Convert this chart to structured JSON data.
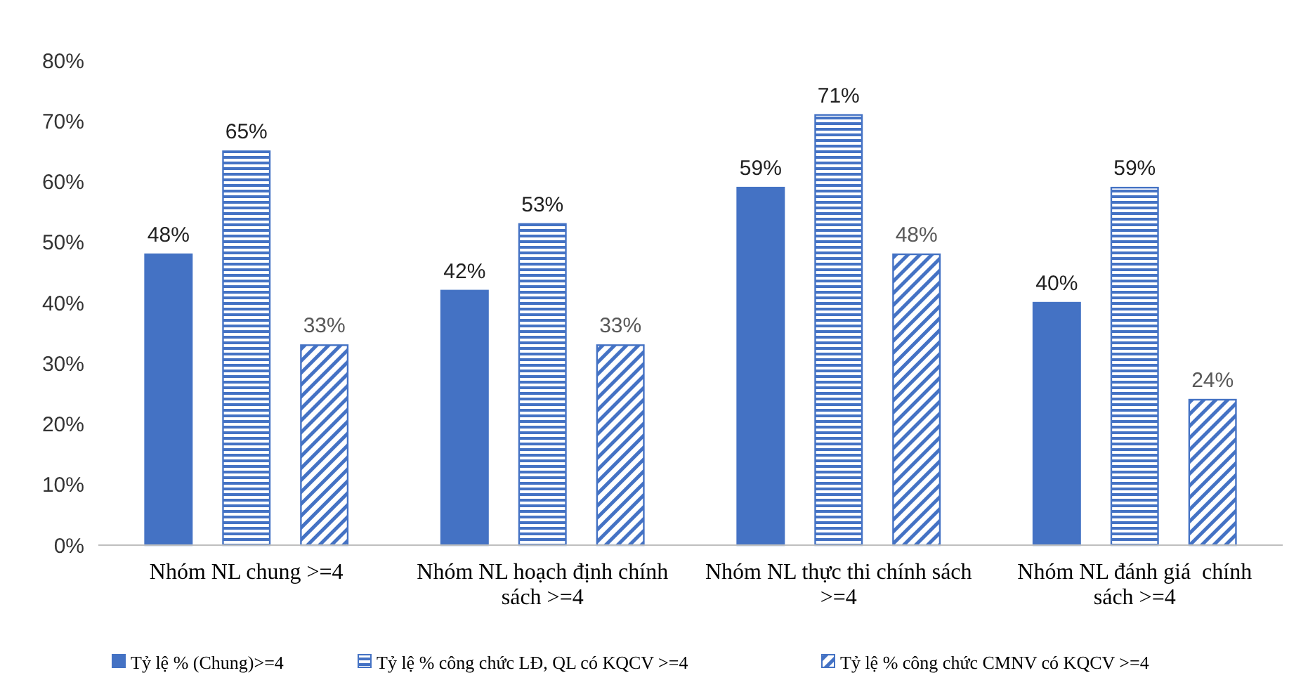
{
  "chart_data": {
    "type": "bar",
    "categories": [
      "Nhóm NL chung >=4",
      "Nhóm NL hoạch định chính sách >=4",
      "Nhóm NL thực thi chính sách >=4",
      "Nhóm NL đánh giá  chính sách >=4"
    ],
    "series": [
      {
        "name": "Tỷ lệ % (Chung)>=4",
        "color": "#4472c4",
        "values": [
          48,
          42,
          59,
          40
        ]
      },
      {
        "name": "Tỷ lệ % công chức LĐ, QL có KQCV >=4",
        "color": "#4472c4",
        "values": [
          65,
          53,
          71,
          59
        ]
      },
      {
        "name": "Tỷ lệ % công chức CMNV có KQCV >=4",
        "color": "#4472c4",
        "values": [
          33,
          33,
          48,
          24
        ]
      }
    ],
    "ylim": [
      0,
      80
    ],
    "yticks": [
      {
        "value": 0,
        "label": "0%"
      },
      {
        "value": 10,
        "label": "10%"
      },
      {
        "value": 20,
        "label": "20%"
      },
      {
        "value": 30,
        "label": "30%"
      },
      {
        "value": 40,
        "label": "40%"
      },
      {
        "value": 50,
        "label": "50%"
      },
      {
        "value": 60,
        "label": "60%"
      },
      {
        "value": 70,
        "label": "70%"
      },
      {
        "value": 80,
        "label": "80%"
      }
    ],
    "value_labels": [
      [
        "48%",
        "42%",
        "59%",
        "40%"
      ],
      [
        "65%",
        "53%",
        "71%",
        "59%"
      ],
      [
        "33%",
        "33%",
        "48%",
        "24%"
      ]
    ],
    "grid": false,
    "legend": "bottom"
  }
}
